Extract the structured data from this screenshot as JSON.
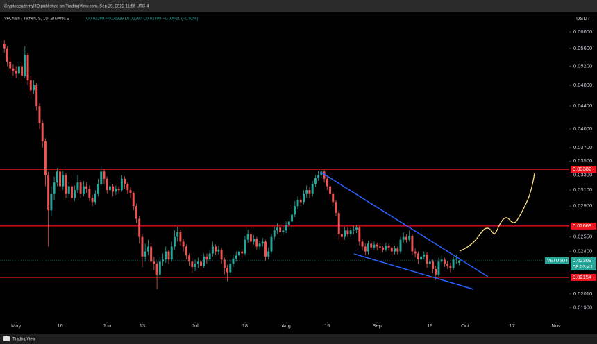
{
  "chart_data": {
    "type": "candlestick",
    "publisher": "CryptoacademyHQ published on TradingView.com, Sep 29, 2022 11:56 UTC-4",
    "title": "VeChain / TetherUS, 1D, BINANCE",
    "readout": "O0.02289 H0.02319 L0.02267 C0.02309 −0.00021 (−0.92%)",
    "currency": "USDT",
    "brand": "TradingView",
    "symbol": "VETUSDT",
    "last_price": 0.02309,
    "countdown": "08:03:41",
    "up_color": "#26a69a",
    "down_color": "#ef5350",
    "hline_color": "#f0141e",
    "hlines": [
      0.03382,
      0.02669,
      0.02154
    ],
    "log_scale": true,
    "grid": false,
    "ylim": [
      0.018,
      0.0632
    ],
    "yticks": [
      {
        "value": 0.06,
        "label": "0.06000"
      },
      {
        "value": 0.056,
        "label": "0.05600"
      },
      {
        "value": 0.052,
        "label": "0.05200"
      },
      {
        "value": 0.048,
        "label": "0.04800"
      },
      {
        "value": 0.044,
        "label": "0.04400"
      },
      {
        "value": 0.04,
        "label": "0.04000"
      },
      {
        "value": 0.037,
        "label": "0.03700"
      },
      {
        "value": 0.035,
        "label": "0.03500"
      },
      {
        "value": 0.033,
        "label": "0.03300"
      },
      {
        "value": 0.031,
        "label": "0.03100"
      },
      {
        "value": 0.029,
        "label": "0.02900"
      },
      {
        "value": 0.0255,
        "label": "0.02550"
      },
      {
        "value": 0.024,
        "label": "0.02400"
      },
      {
        "value": 0.0201,
        "label": "0.02010"
      },
      {
        "value": 0.019,
        "label": "0.01900"
      }
    ],
    "xlim": [
      "2022-04-26",
      "2022-11-05"
    ],
    "xticks": [
      {
        "value": "2022-05-01",
        "label": "May"
      },
      {
        "value": "2022-05-16",
        "label": "16"
      },
      {
        "value": "2022-06-01",
        "label": "Jun"
      },
      {
        "value": "2022-06-13",
        "label": "13"
      },
      {
        "value": "2022-07-01",
        "label": "Jul"
      },
      {
        "value": "2022-07-18",
        "label": "18"
      },
      {
        "value": "2022-08-01",
        "label": "Aug"
      },
      {
        "value": "2022-08-15",
        "label": "15"
      },
      {
        "value": "2022-09-01",
        "label": "Sep"
      },
      {
        "value": "2022-09-19",
        "label": "19"
      },
      {
        "value": "2022-10-01",
        "label": "Oct"
      },
      {
        "value": "2022-10-17",
        "label": "17"
      },
      {
        "value": "2022-11-01",
        "label": "Nov"
      }
    ],
    "x": [
      "2022-04-27",
      "2022-04-28",
      "2022-04-29",
      "2022-04-30",
      "2022-05-01",
      "2022-05-02",
      "2022-05-03",
      "2022-05-04",
      "2022-05-05",
      "2022-05-06",
      "2022-05-07",
      "2022-05-08",
      "2022-05-09",
      "2022-05-10",
      "2022-05-11",
      "2022-05-12",
      "2022-05-13",
      "2022-05-14",
      "2022-05-15",
      "2022-05-16",
      "2022-05-17",
      "2022-05-18",
      "2022-05-19",
      "2022-05-20",
      "2022-05-21",
      "2022-05-22",
      "2022-05-23",
      "2022-05-24",
      "2022-05-25",
      "2022-05-26",
      "2022-05-27",
      "2022-05-28",
      "2022-05-29",
      "2022-05-30",
      "2022-05-31",
      "2022-06-01",
      "2022-06-02",
      "2022-06-03",
      "2022-06-04",
      "2022-06-05",
      "2022-06-06",
      "2022-06-07",
      "2022-06-08",
      "2022-06-09",
      "2022-06-10",
      "2022-06-11",
      "2022-06-12",
      "2022-06-13",
      "2022-06-14",
      "2022-06-15",
      "2022-06-16",
      "2022-06-17",
      "2022-06-18",
      "2022-06-19",
      "2022-06-20",
      "2022-06-21",
      "2022-06-22",
      "2022-06-23",
      "2022-06-24",
      "2022-06-25",
      "2022-06-26",
      "2022-06-27",
      "2022-06-28",
      "2022-06-29",
      "2022-06-30",
      "2022-07-01",
      "2022-07-02",
      "2022-07-03",
      "2022-07-04",
      "2022-07-05",
      "2022-07-06",
      "2022-07-07",
      "2022-07-08",
      "2022-07-09",
      "2022-07-10",
      "2022-07-11",
      "2022-07-12",
      "2022-07-13",
      "2022-07-14",
      "2022-07-15",
      "2022-07-16",
      "2022-07-17",
      "2022-07-18",
      "2022-07-19",
      "2022-07-20",
      "2022-07-21",
      "2022-07-22",
      "2022-07-23",
      "2022-07-24",
      "2022-07-25",
      "2022-07-26",
      "2022-07-27",
      "2022-07-28",
      "2022-07-29",
      "2022-07-30",
      "2022-07-31",
      "2022-08-01",
      "2022-08-02",
      "2022-08-03",
      "2022-08-04",
      "2022-08-05",
      "2022-08-06",
      "2022-08-07",
      "2022-08-08",
      "2022-08-09",
      "2022-08-10",
      "2022-08-11",
      "2022-08-12",
      "2022-08-13",
      "2022-08-14",
      "2022-08-15",
      "2022-08-16",
      "2022-08-17",
      "2022-08-18",
      "2022-08-19",
      "2022-08-20",
      "2022-08-21",
      "2022-08-22",
      "2022-08-23",
      "2022-08-24",
      "2022-08-25",
      "2022-08-26",
      "2022-08-27",
      "2022-08-28",
      "2022-08-29",
      "2022-08-30",
      "2022-08-31",
      "2022-09-01",
      "2022-09-02",
      "2022-09-03",
      "2022-09-04",
      "2022-09-05",
      "2022-09-06",
      "2022-09-07",
      "2022-09-08",
      "2022-09-09",
      "2022-09-10",
      "2022-09-11",
      "2022-09-12",
      "2022-09-13",
      "2022-09-14",
      "2022-09-15",
      "2022-09-16",
      "2022-09-17",
      "2022-09-18",
      "2022-09-19",
      "2022-09-20",
      "2022-09-21",
      "2022-09-22",
      "2022-09-23",
      "2022-09-24",
      "2022-09-25",
      "2022-09-26",
      "2022-09-27",
      "2022-09-28",
      "2022-09-29"
    ],
    "open": [
      0.057,
      0.056,
      0.053,
      0.0515,
      0.051,
      0.0505,
      0.052,
      0.05,
      0.0545,
      0.049,
      0.047,
      0.048,
      0.044,
      0.041,
      0.038,
      0.033,
      0.0285,
      0.0305,
      0.032,
      0.0335,
      0.0315,
      0.033,
      0.0305,
      0.0315,
      0.03,
      0.031,
      0.032,
      0.0305,
      0.0315,
      0.0312,
      0.03,
      0.0295,
      0.0305,
      0.0318,
      0.0335,
      0.0325,
      0.031,
      0.0315,
      0.0308,
      0.0312,
      0.031,
      0.0325,
      0.0318,
      0.031,
      0.0306,
      0.029,
      0.0275,
      0.0255,
      0.0235,
      0.024,
      0.0245,
      0.023,
      0.0228,
      0.0218,
      0.023,
      0.0232,
      0.024,
      0.0232,
      0.0245,
      0.0255,
      0.026,
      0.025,
      0.0245,
      0.0236,
      0.023,
      0.0225,
      0.0228,
      0.023,
      0.0226,
      0.0235,
      0.0232,
      0.0238,
      0.0245,
      0.024,
      0.0242,
      0.0232,
      0.0224,
      0.022,
      0.0228,
      0.0233,
      0.0236,
      0.024,
      0.0238,
      0.0252,
      0.0258,
      0.025,
      0.0253,
      0.0245,
      0.0248,
      0.025,
      0.0235,
      0.024,
      0.0255,
      0.0262,
      0.0265,
      0.026,
      0.0262,
      0.0268,
      0.0272,
      0.028,
      0.029,
      0.0298,
      0.0295,
      0.0305,
      0.031,
      0.0305,
      0.0318,
      0.0326,
      0.033,
      0.0335,
      0.0325,
      0.0315,
      0.0305,
      0.0295,
      0.0282,
      0.0258,
      0.0255,
      0.0262,
      0.0258,
      0.0262,
      0.0263,
      0.0265,
      0.025,
      0.0245,
      0.024,
      0.0248,
      0.0244,
      0.0247,
      0.0245,
      0.0244,
      0.0242,
      0.0246,
      0.0244,
      0.024,
      0.0243,
      0.024,
      0.0252,
      0.0255,
      0.0252,
      0.0256,
      0.024,
      0.0238,
      0.0232,
      0.0235,
      0.0237,
      0.0228,
      0.023,
      0.0223,
      0.0218,
      0.023,
      0.0232,
      0.0228,
      0.0226,
      0.0224,
      0.0232,
      0.02289
    ],
    "high": [
      0.058,
      0.0565,
      0.054,
      0.0525,
      0.052,
      0.053,
      0.0528,
      0.0565,
      0.055,
      0.05,
      0.049,
      0.0485,
      0.0445,
      0.0415,
      0.0385,
      0.0335,
      0.0315,
      0.0328,
      0.034,
      0.034,
      0.0336,
      0.0333,
      0.032,
      0.0318,
      0.0316,
      0.033,
      0.0324,
      0.0322,
      0.032,
      0.0316,
      0.0304,
      0.031,
      0.0325,
      0.0342,
      0.0338,
      0.0328,
      0.032,
      0.0318,
      0.0316,
      0.0315,
      0.033,
      0.0328,
      0.032,
      0.0314,
      0.0308,
      0.0293,
      0.0278,
      0.0258,
      0.0248,
      0.0252,
      0.0248,
      0.0235,
      0.023,
      0.0235,
      0.0238,
      0.0245,
      0.0242,
      0.025,
      0.0262,
      0.0266,
      0.0263,
      0.0253,
      0.0247,
      0.0238,
      0.0233,
      0.0232,
      0.0234,
      0.0232,
      0.0238,
      0.0238,
      0.0242,
      0.025,
      0.0247,
      0.0246,
      0.0244,
      0.0234,
      0.0227,
      0.0232,
      0.0236,
      0.024,
      0.0244,
      0.0243,
      0.0256,
      0.0263,
      0.026,
      0.0257,
      0.0255,
      0.0251,
      0.0254,
      0.0252,
      0.0244,
      0.0258,
      0.0266,
      0.027,
      0.0268,
      0.0266,
      0.0272,
      0.0276,
      0.0285,
      0.0296,
      0.0302,
      0.0303,
      0.031,
      0.0316,
      0.0314,
      0.0322,
      0.033,
      0.0336,
      0.0338,
      0.0337,
      0.0328,
      0.0318,
      0.0308,
      0.0298,
      0.0285,
      0.0262,
      0.0266,
      0.0265,
      0.0265,
      0.0267,
      0.0268,
      0.0267,
      0.0253,
      0.0248,
      0.0251,
      0.025,
      0.025,
      0.0249,
      0.0248,
      0.0246,
      0.0249,
      0.0248,
      0.0246,
      0.0246,
      0.0245,
      0.0255,
      0.026,
      0.0258,
      0.0262,
      0.0258,
      0.0243,
      0.024,
      0.0238,
      0.024,
      0.0239,
      0.0233,
      0.0232,
      0.0226,
      0.0234,
      0.0236,
      0.0234,
      0.0231,
      0.0229,
      0.0235,
      0.0237,
      0.02319
    ],
    "low": [
      0.055,
      0.052,
      0.0505,
      0.05,
      0.0495,
      0.0498,
      0.049,
      0.0495,
      0.048,
      0.046,
      0.0462,
      0.0432,
      0.04,
      0.037,
      0.0315,
      0.0245,
      0.0278,
      0.0298,
      0.0315,
      0.0308,
      0.031,
      0.03,
      0.03,
      0.0295,
      0.0296,
      0.0306,
      0.03,
      0.0302,
      0.0306,
      0.0296,
      0.029,
      0.0292,
      0.0302,
      0.0315,
      0.0318,
      0.0305,
      0.0306,
      0.0302,
      0.0304,
      0.0305,
      0.0308,
      0.0312,
      0.0305,
      0.03,
      0.0285,
      0.027,
      0.0248,
      0.0225,
      0.023,
      0.0236,
      0.0225,
      0.0222,
      0.0205,
      0.0214,
      0.0226,
      0.0229,
      0.0228,
      0.023,
      0.0242,
      0.025,
      0.0246,
      0.024,
      0.0232,
      0.0226,
      0.022,
      0.0221,
      0.0224,
      0.0222,
      0.0224,
      0.0228,
      0.023,
      0.0235,
      0.0236,
      0.0237,
      0.0228,
      0.0218,
      0.0212,
      0.0217,
      0.0225,
      0.023,
      0.0233,
      0.0234,
      0.0236,
      0.0249,
      0.0246,
      0.0247,
      0.0242,
      0.0242,
      0.0245,
      0.0231,
      0.0232,
      0.0238,
      0.0252,
      0.0258,
      0.0256,
      0.0257,
      0.0259,
      0.0263,
      0.027,
      0.0277,
      0.0286,
      0.029,
      0.0292,
      0.03,
      0.03,
      0.0302,
      0.0314,
      0.0322,
      0.0326,
      0.032,
      0.031,
      0.03,
      0.029,
      0.0278,
      0.0252,
      0.025,
      0.0252,
      0.0255,
      0.0255,
      0.0258,
      0.0259,
      0.0246,
      0.0241,
      0.0236,
      0.0237,
      0.0241,
      0.0242,
      0.0241,
      0.0241,
      0.0239,
      0.024,
      0.0241,
      0.0236,
      0.0237,
      0.0237,
      0.0238,
      0.0249,
      0.0249,
      0.025,
      0.0236,
      0.0234,
      0.0228,
      0.0229,
      0.0232,
      0.0224,
      0.0225,
      0.0219,
      0.0213,
      0.0216,
      0.0227,
      0.0225,
      0.0223,
      0.022,
      0.0222,
      0.0228,
      0.02267
    ],
    "close": [
      0.056,
      0.053,
      0.0515,
      0.051,
      0.0505,
      0.052,
      0.05,
      0.0545,
      0.049,
      0.047,
      0.048,
      0.044,
      0.041,
      0.038,
      0.033,
      0.0285,
      0.0305,
      0.032,
      0.0335,
      0.0315,
      0.033,
      0.0305,
      0.0315,
      0.03,
      0.031,
      0.032,
      0.0305,
      0.0315,
      0.0312,
      0.03,
      0.0295,
      0.0305,
      0.0318,
      0.0335,
      0.0325,
      0.031,
      0.0315,
      0.0308,
      0.0312,
      0.031,
      0.0325,
      0.0318,
      0.031,
      0.0306,
      0.029,
      0.0275,
      0.0255,
      0.0235,
      0.024,
      0.0245,
      0.023,
      0.0228,
      0.0218,
      0.023,
      0.0232,
      0.024,
      0.0232,
      0.0245,
      0.0255,
      0.026,
      0.025,
      0.0245,
      0.0236,
      0.023,
      0.0225,
      0.0228,
      0.023,
      0.0226,
      0.0235,
      0.0232,
      0.0238,
      0.0245,
      0.024,
      0.0242,
      0.0232,
      0.0224,
      0.022,
      0.0228,
      0.0233,
      0.0236,
      0.024,
      0.0238,
      0.0252,
      0.0258,
      0.025,
      0.0253,
      0.0245,
      0.0248,
      0.025,
      0.0235,
      0.024,
      0.0255,
      0.0262,
      0.0265,
      0.026,
      0.0262,
      0.0268,
      0.0272,
      0.028,
      0.029,
      0.0298,
      0.0295,
      0.0305,
      0.031,
      0.0305,
      0.0318,
      0.0326,
      0.033,
      0.0335,
      0.0325,
      0.0315,
      0.0305,
      0.0295,
      0.0282,
      0.0258,
      0.0255,
      0.0262,
      0.0258,
      0.0262,
      0.0263,
      0.0265,
      0.025,
      0.0245,
      0.024,
      0.0248,
      0.0244,
      0.0247,
      0.0245,
      0.0244,
      0.0242,
      0.0246,
      0.0244,
      0.024,
      0.0243,
      0.024,
      0.0252,
      0.0255,
      0.0252,
      0.0256,
      0.024,
      0.0238,
      0.0232,
      0.0235,
      0.0237,
      0.0228,
      0.023,
      0.0223,
      0.0218,
      0.023,
      0.0232,
      0.0228,
      0.0226,
      0.0224,
      0.0232,
      0.0233,
      0.02309
    ]
  }
}
